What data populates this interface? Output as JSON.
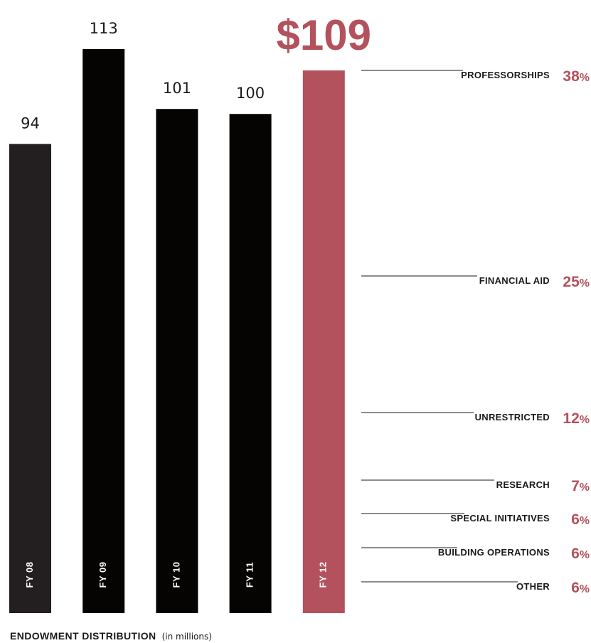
{
  "chart_data": {
    "type": "bar",
    "title": "ENDOWMENT DISTRIBUTION",
    "subtitle": "(in millions)",
    "categories": [
      "FY 08",
      "FY 09",
      "FY 10",
      "FY 11",
      "FY 12"
    ],
    "values": [
      94,
      113,
      101,
      100,
      109
    ],
    "value_labels": [
      "94",
      "113",
      "101",
      "100",
      "$109"
    ],
    "ylim": [
      0,
      113
    ],
    "colors": {
      "default_bar": "#050403",
      "fy08_bar": "#231f20",
      "highlight_bar": "#b3525c",
      "accent_text": "#b3525c",
      "text": "#1a1a1a",
      "line": "#1a1a1a"
    },
    "highlight_index": 4,
    "breakdown": [
      {
        "label": "PROFESSORSHIPS",
        "value": 38,
        "display": "38",
        "unit": "%"
      },
      {
        "label": "FINANCIAL AID",
        "value": 25,
        "display": "25",
        "unit": "%"
      },
      {
        "label": "UNRESTRICTED",
        "value": 12,
        "display": "12",
        "unit": "%"
      },
      {
        "label": "RESEARCH",
        "value": 7,
        "display": "7",
        "unit": "%"
      },
      {
        "label": "SPECIAL INITIATIVES",
        "value": 6,
        "display": "6",
        "unit": "%"
      },
      {
        "label": "BUILDING OPERATIONS",
        "value": 6,
        "display": "6",
        "unit": "%"
      },
      {
        "label": "OTHER",
        "value": 6,
        "display": "6",
        "unit": "%"
      }
    ]
  }
}
